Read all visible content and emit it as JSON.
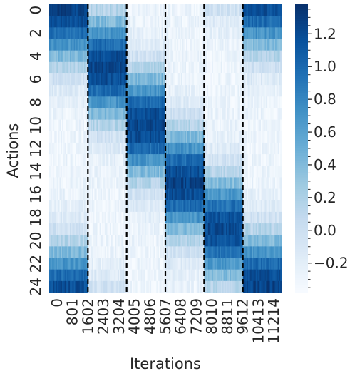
{
  "chart_data": {
    "type": "heatmap",
    "title": "",
    "xlabel": "Iterations",
    "ylabel": "Actions",
    "colormap": "Blues",
    "colormap_range": [
      "#f7fbff",
      "#08306b"
    ],
    "value_range": [
      -0.38,
      1.38
    ],
    "x_tick_labels": [
      "0",
      "801",
      "1602",
      "2403",
      "3204",
      "4005",
      "4806",
      "5607",
      "6408",
      "7209",
      "8010",
      "8811",
      "9612",
      "10413",
      "11214"
    ],
    "y_tick_labels": [
      "0",
      "2",
      "4",
      "6",
      "8",
      "10",
      "12",
      "14",
      "16",
      "18",
      "20",
      "22",
      "24"
    ],
    "colorbar_ticks": [
      "−0.2",
      "0.0",
      "0.2",
      "0.4",
      "0.6",
      "0.8",
      "1.0",
      "1.2"
    ],
    "colorbar_tick_values": [
      -0.2,
      0.0,
      0.2,
      0.4,
      0.5999,
      0.8,
      1.0,
      1.2
    ],
    "dashed_line_iterations": [
      2002,
      4005,
      6007,
      8010,
      10012
    ],
    "rows": 25,
    "segments": [
      {
        "iterations": [
          0,
          2002
        ],
        "peak_action": 0,
        "peak_value": 1.25
      },
      {
        "iterations": [
          2002,
          4005
        ],
        "peak_action": 5,
        "peak_value": 1.25
      },
      {
        "iterations": [
          4005,
          6007
        ],
        "peak_action": 10,
        "peak_value": 1.25
      },
      {
        "iterations": [
          6007,
          8010
        ],
        "peak_action": 15,
        "peak_value": 1.25
      },
      {
        "iterations": [
          8010,
          10012
        ],
        "peak_action": 19,
        "peak_value": 1.2
      },
      {
        "iterations": [
          10012,
          12014
        ],
        "peak_action": 24,
        "peak_value": 1.25
      }
    ]
  }
}
